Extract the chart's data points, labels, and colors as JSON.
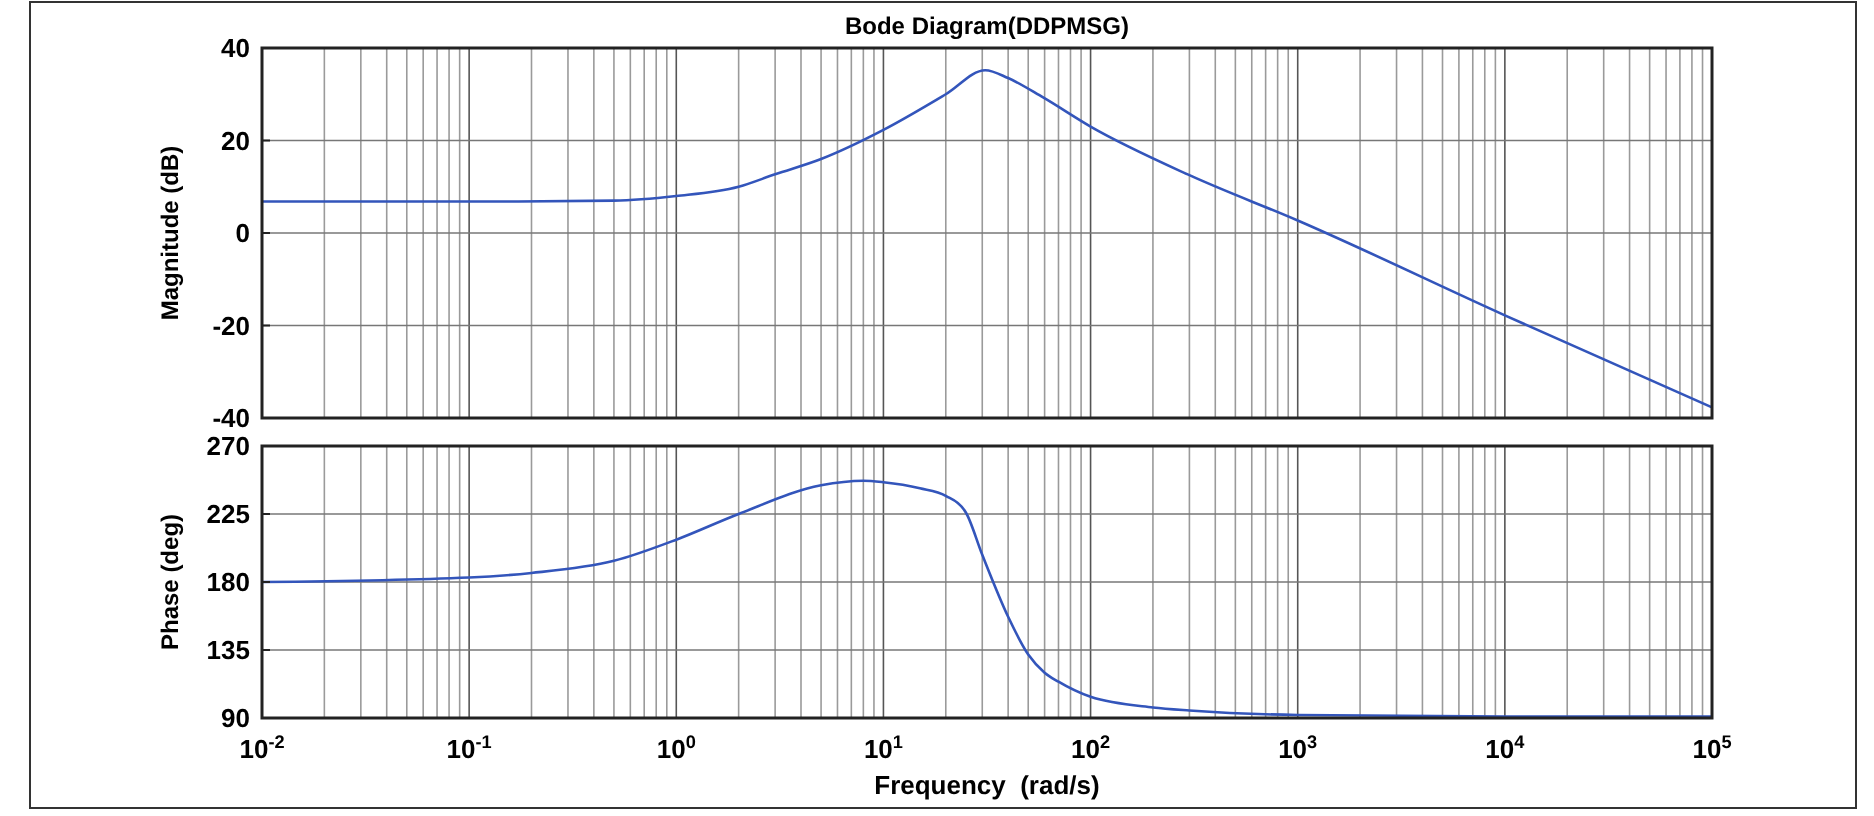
{
  "chart_data": [
    {
      "type": "line",
      "title": "Bode Diagram(DDPMSG)",
      "ylabel": "Magnitude (dB)",
      "xlim": [
        0.01,
        100000
      ],
      "ylim": [
        -40,
        40
      ],
      "yticks": [
        -40,
        -20,
        0,
        20,
        40
      ],
      "xticks": [
        {
          "value": 0.01,
          "label": null
        },
        {
          "value": 0.1,
          "label": null
        },
        {
          "value": 1,
          "label": null
        },
        {
          "value": 10,
          "label": null
        },
        {
          "value": 100,
          "label": null
        },
        {
          "value": 1000,
          "label": null
        },
        {
          "value": 10000,
          "label": null
        },
        {
          "value": 100000,
          "label": null
        }
      ],
      "log": "x",
      "grid": true,
      "tick_labels": "y",
      "line_style": "solid",
      "marker": "none",
      "series": [
        {
          "color": "#3355bb",
          "x": [
            0.01,
            0.1,
            0.5,
            1,
            2,
            3,
            5,
            10,
            20,
            31,
            40,
            59,
            100,
            300,
            1000,
            10000,
            100000
          ],
          "values": [
            6.8,
            6.8,
            7,
            8,
            10,
            12.7,
            16,
            22.3,
            30,
            35.2,
            33.5,
            29.3,
            23,
            12.5,
            2.7,
            -17.8,
            -37.7
          ]
        }
      ]
    },
    {
      "type": "line",
      "xlabel": "Frequency  (rad/s)",
      "ylabel": "Phase (deg)",
      "xlim": [
        0.01,
        100000
      ],
      "ylim": [
        90,
        270
      ],
      "yticks": [
        90,
        135,
        180,
        225,
        270
      ],
      "xticks": [
        {
          "value": 0.01,
          "label": "10$^{-2}$"
        },
        {
          "value": 0.1,
          "label": "10$^{-1}$"
        },
        {
          "value": 1,
          "label": "10$^{0}$"
        },
        {
          "value": 10,
          "label": "10$^{1}$"
        },
        {
          "value": 100,
          "label": "10$^{2}$"
        },
        {
          "value": 1000,
          "label": "10$^{3}$"
        },
        {
          "value": 10000,
          "label": "10$^{4}$"
        },
        {
          "value": 100000,
          "label": "10$^{5}$"
        }
      ],
      "log": "x",
      "grid": true,
      "line_style": "solid",
      "marker": "none",
      "series": [
        {
          "color": "#3355bb",
          "x": [
            0.01,
            0.1,
            0.2,
            0.5,
            1,
            2,
            5,
            8,
            10,
            15,
            20,
            25,
            30,
            40,
            50,
            60,
            70,
            100,
            200,
            300,
            1000,
            10000,
            100000
          ],
          "values": [
            180,
            183,
            186,
            194,
            208,
            225,
            244,
            247,
            246,
            242,
            237,
            226,
            198,
            157,
            132,
            120,
            114,
            104,
            97,
            95,
            92,
            91,
            91
          ]
        }
      ]
    }
  ]
}
